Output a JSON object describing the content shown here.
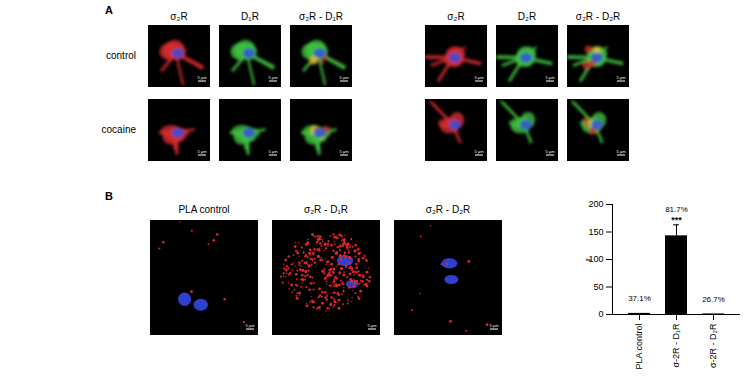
{
  "panels": {
    "A": {
      "label": "A",
      "groups": [
        {
          "columns": [
            "σ₂R",
            "D₁R",
            "σ₂R - D₁R"
          ]
        },
        {
          "columns": [
            "σ₂R",
            "D₂R",
            "σ₂R - D₂R"
          ]
        }
      ],
      "rows": [
        "control",
        "cocaine"
      ],
      "scale_bar": "5 µm"
    },
    "B": {
      "label": "B",
      "images": [
        "PLA control",
        "σ₂R - D₁R",
        "σ₂R - D₂R"
      ],
      "scale_bar": "5 µm"
    }
  },
  "chart_data": {
    "type": "bar",
    "categories": [
      "PLA control",
      "σ-2R - D₁R",
      "σ-2R - D₂R"
    ],
    "values": [
      2,
      143,
      1
    ],
    "errors": [
      0,
      20,
      0
    ],
    "annotations": [
      "37.1%",
      "81.7%",
      "26.7%"
    ],
    "significance": [
      null,
      "***",
      null
    ],
    "ylabel": "r",
    "ylim": [
      0,
      200
    ],
    "yticks": [
      0,
      50,
      100,
      150,
      200
    ],
    "color": "#000000"
  }
}
